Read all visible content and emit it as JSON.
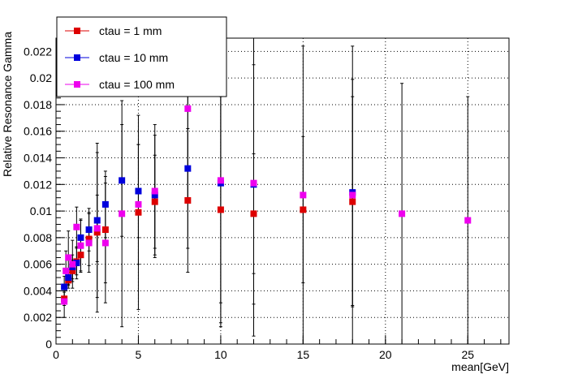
{
  "chart_data": {
    "type": "scatter",
    "title": "",
    "xlabel": "mean[GeV]",
    "ylabel": "Relative Resonance Gamma",
    "xlim": [
      0,
      27.5
    ],
    "ylim": [
      0,
      0.023
    ],
    "x_ticks": [
      0,
      5,
      10,
      15,
      20,
      25
    ],
    "y_ticks": [
      0,
      0.002,
      0.004,
      0.006,
      0.008,
      0.01,
      0.012,
      0.014,
      0.016,
      0.018,
      0.02,
      0.022
    ],
    "x_tick_labels": [
      "0",
      "5",
      "10",
      "15",
      "20",
      "25"
    ],
    "y_tick_labels": [
      "0",
      "0.002",
      "0.004",
      "0.006",
      "0.008",
      "0.01",
      "0.012",
      "0.014",
      "0.016",
      "0.018",
      "0.02",
      "0.022"
    ],
    "grid": true,
    "legend_position": "top-left",
    "series": [
      {
        "name": "ctau = 1 mm",
        "color": "#dd0000",
        "points": [
          {
            "x": 0.5,
            "y": 0.0034,
            "err": 0.0005
          },
          {
            "x": 0.75,
            "y": 0.0048,
            "err": 0.0006
          },
          {
            "x": 1.0,
            "y": 0.0055,
            "err": 0.0008
          },
          {
            "x": 1.25,
            "y": 0.0062,
            "err": 0.001
          },
          {
            "x": 1.5,
            "y": 0.0067,
            "err": 0.0012
          },
          {
            "x": 2.0,
            "y": 0.0079,
            "err": 0.002
          },
          {
            "x": 2.5,
            "y": 0.0084,
            "err": 0.006
          },
          {
            "x": 3.0,
            "y": 0.0086,
            "err": 0.004
          },
          {
            "x": 5.0,
            "y": 0.0099,
            "err": 0.0073
          },
          {
            "x": 6.0,
            "y": 0.0107,
            "err": 0.0035
          },
          {
            "x": 8.0,
            "y": 0.0108,
            "err": 0.0054
          },
          {
            "x": 10.0,
            "y": 0.0101,
            "err": 0.0085
          },
          {
            "x": 12.0,
            "y": 0.0098,
            "err": 0.0045
          },
          {
            "x": 15.0,
            "y": 0.0101,
            "err": 0.0055
          },
          {
            "x": 18.0,
            "y": 0.0107,
            "err": 0.0079
          }
        ]
      },
      {
        "name": "ctau = 10 mm",
        "color": "#0000dd",
        "points": [
          {
            "x": 0.5,
            "y": 0.0043,
            "err": 0.0008
          },
          {
            "x": 0.75,
            "y": 0.005,
            "err": 0.0006
          },
          {
            "x": 1.0,
            "y": 0.0058,
            "err": 0.0009
          },
          {
            "x": 1.25,
            "y": 0.0061,
            "err": 0.0012
          },
          {
            "x": 1.5,
            "y": 0.008,
            "err": 0.0013
          },
          {
            "x": 2.0,
            "y": 0.0086,
            "err": 0.0016
          },
          {
            "x": 2.5,
            "y": 0.0093,
            "err": 0.0058
          },
          {
            "x": 3.0,
            "y": 0.0105,
            "err": 0.0025
          },
          {
            "x": 4.0,
            "y": 0.0123,
            "err": 0.0042
          },
          {
            "x": 5.0,
            "y": 0.0115,
            "err": 0.0035
          },
          {
            "x": 6.0,
            "y": 0.0112,
            "err": 0.0045
          },
          {
            "x": 8.0,
            "y": 0.0132,
            "err": 0.006
          },
          {
            "x": 10.0,
            "y": 0.0121,
            "err": 0.009
          },
          {
            "x": 12.0,
            "y": 0.012,
            "err": 0.009
          },
          {
            "x": 18.0,
            "y": 0.0114,
            "err": 0.0085
          }
        ]
      },
      {
        "name": "ctau = 100 mm",
        "color": "#ee00ee",
        "points": [
          {
            "x": 0.5,
            "y": 0.0032,
            "err": 0.0012
          },
          {
            "x": 0.6,
            "y": 0.0055,
            "err": 0.0015
          },
          {
            "x": 0.75,
            "y": 0.0065,
            "err": 0.002
          },
          {
            "x": 1.0,
            "y": 0.006,
            "err": 0.0018
          },
          {
            "x": 1.25,
            "y": 0.0088,
            "err": 0.0015
          },
          {
            "x": 1.5,
            "y": 0.0074,
            "err": 0.002
          },
          {
            "x": 2.0,
            "y": 0.0076,
            "err": 0.0022
          },
          {
            "x": 2.5,
            "y": 0.0087,
            "err": 0.0025
          },
          {
            "x": 3.0,
            "y": 0.0076,
            "err": 0.0045
          },
          {
            "x": 4.0,
            "y": 0.0098,
            "err": 0.0085
          },
          {
            "x": 5.0,
            "y": 0.0105,
            "err": 0.0045
          },
          {
            "x": 6.0,
            "y": 0.0115,
            "err": 0.005
          },
          {
            "x": 8.0,
            "y": 0.0177,
            "err": 0.007
          },
          {
            "x": 10.0,
            "y": 0.0123,
            "err": 0.011
          },
          {
            "x": 12.0,
            "y": 0.0121,
            "err": 0.0115
          },
          {
            "x": 15.0,
            "y": 0.0112,
            "err": 0.0112
          },
          {
            "x": 18.0,
            "y": 0.0112,
            "err": 0.0112
          },
          {
            "x": 21.0,
            "y": 0.0098,
            "err": 0.0098
          },
          {
            "x": 25.0,
            "y": 0.0093,
            "err": 0.0093
          }
        ]
      }
    ]
  }
}
